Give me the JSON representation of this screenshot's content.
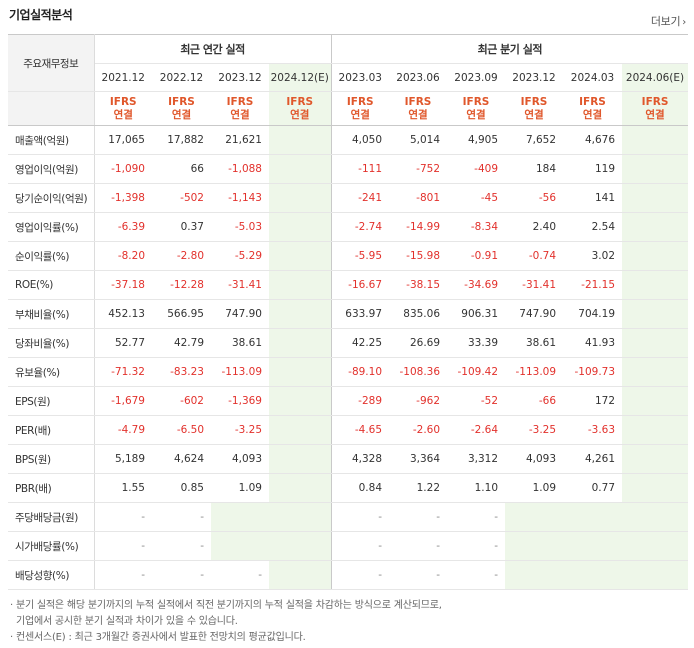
{
  "title": "기업실적분석",
  "more_label": "더보기",
  "header": {
    "row_head": "주요재무정보",
    "annual_group": "최근 연간 실적",
    "quarter_group": "최근 분기 실적",
    "annual_periods": [
      "2021.12",
      "2022.12",
      "2023.12",
      "2024.12(E)"
    ],
    "quarter_periods": [
      "2023.03",
      "2023.06",
      "2023.09",
      "2023.12",
      "2024.03",
      "2024.06(E)"
    ],
    "ifrs_top": "IFRS",
    "ifrs_bottom": "연결"
  },
  "rows": [
    {
      "label": "매출액(억원)",
      "annual": [
        "17,065",
        "17,882",
        "21,621",
        ""
      ],
      "quarter": [
        "4,050",
        "5,014",
        "4,905",
        "7,652",
        "4,676",
        ""
      ]
    },
    {
      "label": "영업이익(억원)",
      "annual": [
        "-1,090",
        "66",
        "-1,088",
        ""
      ],
      "quarter": [
        "-111",
        "-752",
        "-409",
        "184",
        "119",
        ""
      ]
    },
    {
      "label": "당기순이익(억원)",
      "annual": [
        "-1,398",
        "-502",
        "-1,143",
        ""
      ],
      "quarter": [
        "-241",
        "-801",
        "-45",
        "-56",
        "141",
        ""
      ]
    },
    {
      "label": "영업이익률(%)",
      "annual": [
        "-6.39",
        "0.37",
        "-5.03",
        ""
      ],
      "quarter": [
        "-2.74",
        "-14.99",
        "-8.34",
        "2.40",
        "2.54",
        ""
      ]
    },
    {
      "label": "순이익률(%)",
      "annual": [
        "-8.20",
        "-2.80",
        "-5.29",
        ""
      ],
      "quarter": [
        "-5.95",
        "-15.98",
        "-0.91",
        "-0.74",
        "3.02",
        ""
      ]
    },
    {
      "label": "ROE(%)",
      "annual": [
        "-37.18",
        "-12.28",
        "-31.41",
        ""
      ],
      "quarter": [
        "-16.67",
        "-38.15",
        "-34.69",
        "-31.41",
        "-21.15",
        ""
      ]
    },
    {
      "label": "부채비율(%)",
      "annual": [
        "452.13",
        "566.95",
        "747.90",
        ""
      ],
      "quarter": [
        "633.97",
        "835.06",
        "906.31",
        "747.90",
        "704.19",
        ""
      ]
    },
    {
      "label": "당좌비율(%)",
      "annual": [
        "52.77",
        "42.79",
        "38.61",
        ""
      ],
      "quarter": [
        "42.25",
        "26.69",
        "33.39",
        "38.61",
        "41.93",
        ""
      ]
    },
    {
      "label": "유보율(%)",
      "annual": [
        "-71.32",
        "-83.23",
        "-113.09",
        ""
      ],
      "quarter": [
        "-89.10",
        "-108.36",
        "-109.42",
        "-113.09",
        "-109.73",
        ""
      ]
    },
    {
      "label": "EPS(원)",
      "annual": [
        "-1,679",
        "-602",
        "-1,369",
        ""
      ],
      "quarter": [
        "-289",
        "-962",
        "-52",
        "-66",
        "172",
        ""
      ]
    },
    {
      "label": "PER(배)",
      "annual": [
        "-4.79",
        "-6.50",
        "-3.25",
        ""
      ],
      "quarter": [
        "-4.65",
        "-2.60",
        "-2.64",
        "-3.25",
        "-3.63",
        ""
      ]
    },
    {
      "label": "BPS(원)",
      "annual": [
        "5,189",
        "4,624",
        "4,093",
        ""
      ],
      "quarter": [
        "4,328",
        "3,364",
        "3,312",
        "4,093",
        "4,261",
        ""
      ]
    },
    {
      "label": "PBR(배)",
      "annual": [
        "1.55",
        "0.85",
        "1.09",
        ""
      ],
      "quarter": [
        "0.84",
        "1.22",
        "1.10",
        "1.09",
        "0.77",
        ""
      ]
    },
    {
      "label": "주당배당금(원)",
      "annual": [
        "-",
        "-",
        "",
        ""
      ],
      "quarter": [
        "-",
        "-",
        "-",
        "",
        "",
        ""
      ]
    },
    {
      "label": "시가배당률(%)",
      "annual": [
        "-",
        "-",
        "",
        ""
      ],
      "quarter": [
        "-",
        "-",
        "-",
        "",
        "",
        ""
      ]
    },
    {
      "label": "배당성향(%)",
      "annual": [
        "-",
        "-",
        "-",
        ""
      ],
      "quarter": [
        "-",
        "-",
        "-",
        "",
        "",
        ""
      ]
    }
  ],
  "group_starts": [
    0,
    3,
    6,
    9,
    13
  ],
  "notes": [
    "· 분기 실적은 해당 분기까지의 누적 실적에서 직전 분기까지의 누적 실적을 차감하는 방식으로 계산되므로,",
    "  기업에서 공시한 분기 실적과 차이가 있을 수 있습니다.",
    "· 컨센서스(E) : 최근 3개월간 증권사에서 발표한 전망치의 평균값입니다."
  ],
  "colors": {
    "negative": "#e2312c",
    "ifrs": "#e0572b",
    "estimate_bg": "#eef7e9",
    "header_bg": "#f3f3f3"
  }
}
